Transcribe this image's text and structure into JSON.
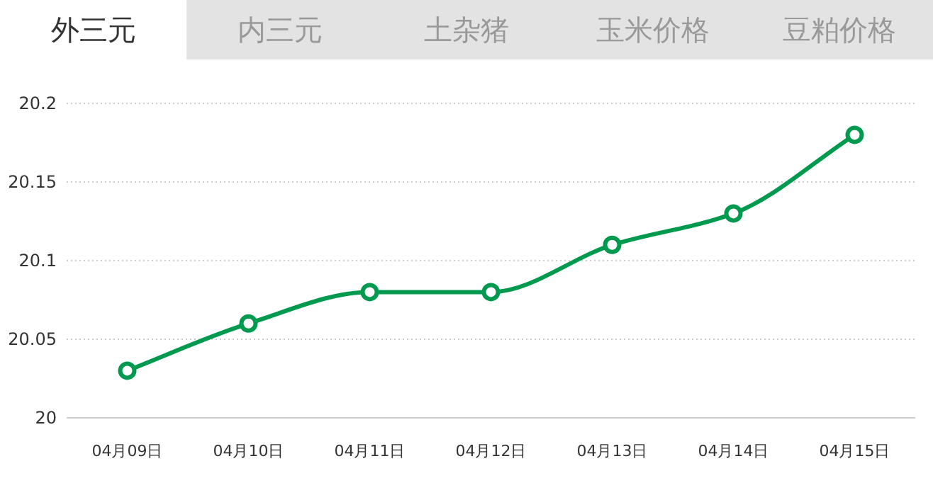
{
  "chart_data": {
    "type": "line",
    "title": "外三元",
    "annotations": [
      "内三元",
      "土杂猪",
      "玉米价格",
      "豆粕价格"
    ],
    "categories": [
      "04月09日",
      "04月10日",
      "04月11日",
      "04月12日",
      "04月13日",
      "04月14日",
      "04月15日"
    ],
    "series": [
      {
        "color": "#009a4e",
        "values": [
          20.03,
          20.06,
          20.08,
          20.08,
          20.11,
          20.13,
          20.18
        ]
      }
    ],
    "ylim": [
      20,
      20.2
    ],
    "yticks": [
      20,
      20.05,
      20.1,
      20.15,
      20.2
    ],
    "grid": "y",
    "marker": "circle",
    "line_style": "solid"
  }
}
